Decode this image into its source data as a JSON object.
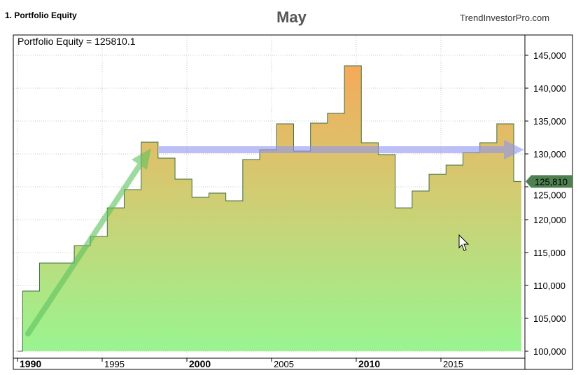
{
  "header": {
    "pane_title": "1. Portfolio Equity",
    "title": "May",
    "watermark": "TrendInvestorPro.com"
  },
  "colors": {
    "fill_top": "#f5a95a",
    "fill_bottom": "#98f590",
    "line": "#3f6f3f",
    "marker_bg": "#4e8050",
    "arrow_up": "#5fc25f",
    "arrow_flat": "#aab0f5"
  },
  "chart_data": {
    "type": "area",
    "title": "",
    "legend": "Portfolio Equity = 125810.1",
    "last_value_label": "125,810",
    "xlim": [
      1989.75,
      2019.9
    ],
    "ylim": [
      99000,
      147500
    ],
    "yticks": [
      100000,
      105000,
      110000,
      115000,
      120000,
      125000,
      130000,
      135000,
      140000,
      145000
    ],
    "ytick_labels": [
      "100,000",
      "105,000",
      "110,000",
      "115,000",
      "120,000",
      "125,000",
      "130,000",
      "135,000",
      "140,000",
      "145,000"
    ],
    "xticks": [
      1990,
      1995,
      2000,
      2005,
      2010,
      2015
    ],
    "xtick_labels": [
      "1990",
      "1995",
      "2000",
      "2005",
      "2010",
      "2015"
    ],
    "xtick_bold": [
      true,
      false,
      true,
      false,
      true,
      false
    ],
    "grid": true,
    "step": true,
    "points": [
      [
        1990.0,
        100000
      ],
      [
        1990.3,
        109150
      ],
      [
        1991.3,
        113400
      ],
      [
        1993.35,
        116060
      ],
      [
        1994.3,
        117450
      ],
      [
        1995.3,
        121800
      ],
      [
        1996.3,
        124570
      ],
      [
        1997.3,
        131800
      ],
      [
        1998.3,
        129360
      ],
      [
        1999.3,
        126170
      ],
      [
        2000.3,
        123400
      ],
      [
        2001.3,
        124040
      ],
      [
        2002.3,
        122870
      ],
      [
        2003.3,
        129150
      ],
      [
        2004.3,
        130640
      ],
      [
        2005.3,
        134570
      ],
      [
        2006.3,
        130430
      ],
      [
        2007.3,
        134680
      ],
      [
        2008.3,
        136170
      ],
      [
        2009.3,
        143400
      ],
      [
        2010.3,
        131700
      ],
      [
        2011.3,
        129900
      ],
      [
        2012.3,
        121800
      ],
      [
        2013.3,
        124360
      ],
      [
        2014.3,
        126900
      ],
      [
        2015.3,
        128300
      ],
      [
        2016.3,
        130200
      ],
      [
        2017.3,
        131700
      ],
      [
        2018.3,
        134570
      ],
      [
        2019.3,
        125810
      ],
      [
        2019.75,
        125810
      ]
    ]
  }
}
